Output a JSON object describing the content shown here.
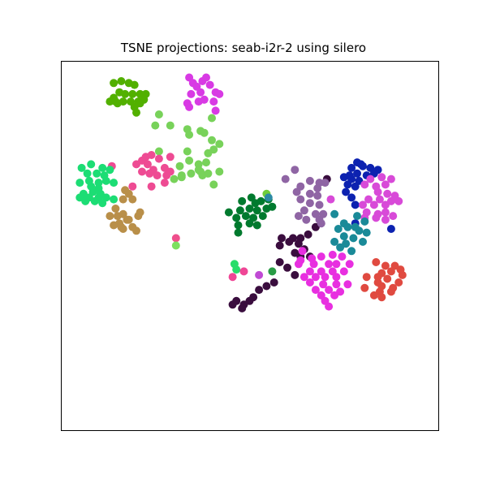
{
  "chart_data": {
    "type": "scatter",
    "title": "TSNE projections: seab-i2r-2 using silero",
    "xlabel": "",
    "ylabel": "",
    "axis_ticks": "none",
    "grid": false,
    "xlim": [
      0,
      100
    ],
    "ylim": [
      0,
      100
    ],
    "series": [
      {
        "color": "#52b000",
        "points": [
          [
            14,
            94
          ],
          [
            16,
            94.5
          ],
          [
            18,
            94
          ],
          [
            19.5,
            93.5
          ],
          [
            14,
            90
          ],
          [
            15.5,
            91.5
          ],
          [
            17,
            91
          ],
          [
            19,
            91
          ],
          [
            21,
            91
          ],
          [
            22.5,
            91
          ],
          [
            13,
            89
          ],
          [
            15,
            88.5
          ],
          [
            16.5,
            89
          ],
          [
            18.5,
            89
          ],
          [
            20.5,
            89
          ],
          [
            22,
            89.5
          ],
          [
            21,
            88.5
          ],
          [
            19.5,
            87.5
          ],
          [
            14.5,
            89
          ],
          [
            20,
            86
          ]
        ]
      },
      {
        "color": "#d83ae4",
        "points": [
          [
            34,
            95.5
          ],
          [
            38.5,
            95.5
          ],
          [
            35,
            94
          ],
          [
            37.5,
            94.5
          ],
          [
            39.5,
            93.5
          ],
          [
            36,
            93
          ],
          [
            41,
            91.5
          ],
          [
            42,
            91
          ],
          [
            34.5,
            91
          ],
          [
            37,
            91.5
          ],
          [
            38,
            89.5
          ],
          [
            40.5,
            89
          ],
          [
            33.5,
            88.5
          ],
          [
            36.5,
            89
          ],
          [
            34,
            87.5
          ],
          [
            41,
            86.5
          ]
        ]
      },
      {
        "color": "#78d25a",
        "points": [
          [
            26,
            85.5
          ],
          [
            25,
            82.5
          ],
          [
            29,
            82.5
          ],
          [
            33.5,
            81.5
          ],
          [
            37,
            81
          ],
          [
            34,
            80
          ],
          [
            40,
            84.5
          ],
          [
            38,
            80.5
          ],
          [
            40,
            78.5
          ],
          [
            42,
            77.5
          ],
          [
            33.5,
            75.5
          ],
          [
            40.5,
            76
          ],
          [
            26,
            75.5
          ],
          [
            39,
            75
          ],
          [
            34,
            73
          ],
          [
            36.5,
            72
          ],
          [
            38.5,
            72.5
          ],
          [
            31.5,
            71.5
          ],
          [
            32,
            69
          ],
          [
            34.5,
            69.5
          ],
          [
            37,
            70
          ],
          [
            42,
            70
          ],
          [
            39,
            69.5
          ],
          [
            30,
            68
          ],
          [
            37.5,
            69
          ],
          [
            40.5,
            66.5
          ],
          [
            32,
            68.5
          ],
          [
            36.5,
            70.5
          ]
        ]
      },
      {
        "color": "#ee4b93",
        "points": [
          [
            22.5,
            74
          ],
          [
            24,
            74.5
          ],
          [
            21.5,
            73
          ],
          [
            26,
            73.5
          ],
          [
            29,
            74
          ],
          [
            20,
            72
          ],
          [
            23,
            72
          ],
          [
            24.5,
            70.5
          ],
          [
            27.5,
            71
          ],
          [
            29,
            70
          ],
          [
            21.5,
            70
          ],
          [
            23.5,
            69.5
          ],
          [
            25.5,
            69
          ],
          [
            28,
            69
          ],
          [
            19,
            66
          ],
          [
            24,
            66
          ],
          [
            27.5,
            67
          ],
          [
            13.5,
            71.5
          ]
        ]
      },
      {
        "color": "#1cdd74",
        "points": [
          [
            5.5,
            71
          ],
          [
            8,
            72
          ],
          [
            11,
            71
          ],
          [
            13,
            70.5
          ],
          [
            7,
            69.5
          ],
          [
            9.5,
            69.5
          ],
          [
            11.5,
            69
          ],
          [
            5,
            67
          ],
          [
            7.5,
            67.5
          ],
          [
            10,
            67
          ],
          [
            12,
            67.5
          ],
          [
            14,
            67
          ],
          [
            8,
            66
          ],
          [
            10,
            65.5
          ],
          [
            6,
            64
          ],
          [
            8.5,
            64.5
          ],
          [
            10.5,
            64
          ],
          [
            5,
            63
          ],
          [
            7.5,
            63
          ],
          [
            10,
            63
          ],
          [
            12,
            63
          ],
          [
            14,
            62.5
          ],
          [
            6.5,
            62
          ],
          [
            9,
            62
          ],
          [
            11,
            61.5
          ]
        ]
      },
      {
        "color": "#b98f49",
        "points": [
          [
            17,
            65
          ],
          [
            18,
            64
          ],
          [
            16.5,
            62.5
          ],
          [
            19,
            62.5
          ],
          [
            14.5,
            60
          ],
          [
            15,
            58
          ],
          [
            16.5,
            58.5
          ],
          [
            15.5,
            56
          ],
          [
            18,
            57
          ],
          [
            20.5,
            58
          ],
          [
            21,
            59
          ],
          [
            17.5,
            57
          ],
          [
            13,
            58
          ],
          [
            14,
            55.5
          ],
          [
            16.5,
            54.5
          ],
          [
            20,
            54
          ],
          [
            19,
            55
          ],
          [
            16,
            55
          ]
        ]
      },
      {
        "color": "#007a2e",
        "points": [
          [
            48,
            62
          ],
          [
            50.5,
            63
          ],
          [
            51.5,
            61.5
          ],
          [
            53,
            62
          ],
          [
            55,
            62.5
          ],
          [
            47.5,
            59.5
          ],
          [
            50,
            60
          ],
          [
            52,
            59.5
          ],
          [
            54.5,
            60
          ],
          [
            56,
            60.5
          ],
          [
            44.5,
            59
          ],
          [
            46.5,
            57.5
          ],
          [
            49,
            58
          ],
          [
            51,
            57.5
          ],
          [
            53.5,
            58
          ],
          [
            47,
            55.5
          ],
          [
            50,
            56
          ],
          [
            52,
            55.5
          ],
          [
            47,
            53.5
          ]
        ]
      },
      {
        "color": "#3a0d3e",
        "points": [
          [
            70.5,
            68
          ],
          [
            58.5,
            52
          ],
          [
            61.5,
            52
          ],
          [
            63.5,
            52
          ],
          [
            65.5,
            53
          ],
          [
            58,
            50
          ],
          [
            60.5,
            51
          ],
          [
            63,
            50.5
          ],
          [
            64.5,
            49
          ],
          [
            67.5,
            55
          ],
          [
            62,
            48
          ],
          [
            63.5,
            47
          ],
          [
            66,
            47
          ],
          [
            58,
            45.5
          ],
          [
            60,
            44
          ],
          [
            62,
            42
          ],
          [
            56.5,
            40
          ],
          [
            54.5,
            39
          ],
          [
            52.5,
            38
          ],
          [
            51,
            36
          ],
          [
            50,
            35
          ],
          [
            48.5,
            34
          ],
          [
            46.5,
            35
          ],
          [
            45.5,
            34
          ],
          [
            48,
            33
          ]
        ]
      },
      {
        "color": "#8f65a4",
        "points": [
          [
            62,
            70.5
          ],
          [
            59.5,
            68
          ],
          [
            66,
            67.5
          ],
          [
            68.5,
            67
          ],
          [
            70,
            67
          ],
          [
            63.5,
            66
          ],
          [
            68,
            65.5
          ],
          [
            62.5,
            64.5
          ],
          [
            66,
            64
          ],
          [
            68,
            63.5
          ],
          [
            63.5,
            62.5
          ],
          [
            68.5,
            61
          ],
          [
            66,
            61.5
          ],
          [
            64.5,
            59.5
          ],
          [
            67.5,
            58.5
          ],
          [
            65,
            57
          ],
          [
            68.5,
            57
          ],
          [
            69.5,
            58.5
          ],
          [
            63,
            58
          ],
          [
            69,
            56
          ]
        ]
      },
      {
        "color": "#0c22b0",
        "points": [
          [
            78.5,
            72.5
          ],
          [
            79.5,
            72
          ],
          [
            77,
            71
          ],
          [
            80,
            71.5
          ],
          [
            82,
            71
          ],
          [
            84,
            70.5
          ],
          [
            76.5,
            69
          ],
          [
            78.5,
            69.5
          ],
          [
            81,
            69
          ],
          [
            83,
            69.5
          ],
          [
            75,
            68.5
          ],
          [
            77,
            68
          ],
          [
            79,
            67.5
          ],
          [
            76,
            66.5
          ],
          [
            78,
            66
          ],
          [
            75.5,
            64.5
          ],
          [
            77,
            63
          ],
          [
            78,
            61
          ],
          [
            78,
            56
          ],
          [
            87.5,
            54.5
          ]
        ]
      },
      {
        "color": "#d84ad8",
        "points": [
          [
            82,
            68
          ],
          [
            85,
            68.5
          ],
          [
            87.5,
            68
          ],
          [
            80.5,
            66.5
          ],
          [
            83.5,
            66
          ],
          [
            86,
            66.5
          ],
          [
            84,
            64.5
          ],
          [
            86.5,
            64
          ],
          [
            88.5,
            63.5
          ],
          [
            81.5,
            62.5
          ],
          [
            84.5,
            62.5
          ],
          [
            87.5,
            62
          ],
          [
            89.5,
            62
          ],
          [
            80,
            61
          ],
          [
            83,
            61
          ],
          [
            86,
            61
          ],
          [
            71.5,
            62.5
          ],
          [
            81,
            59
          ],
          [
            84,
            58.5
          ],
          [
            86,
            59
          ],
          [
            88,
            58
          ],
          [
            80.5,
            57.5
          ],
          [
            83.5,
            57.5
          ],
          [
            86,
            57
          ]
        ]
      },
      {
        "color": "#1a8a98",
        "points": [
          [
            72.5,
            58.5
          ],
          [
            78.5,
            58
          ],
          [
            75,
            56
          ],
          [
            80.5,
            56.5
          ],
          [
            78,
            55
          ],
          [
            73.5,
            54.5
          ],
          [
            76,
            55
          ],
          [
            79,
            54
          ],
          [
            81,
            53.5
          ],
          [
            75,
            52.5
          ],
          [
            77.5,
            52
          ],
          [
            80,
            51
          ],
          [
            75.5,
            50.5
          ],
          [
            77,
            48.5
          ],
          [
            72.5,
            51
          ],
          [
            74,
            49.5
          ]
        ]
      },
      {
        "color": "#e82fe0",
        "points": [
          [
            64,
            48.5
          ],
          [
            63.5,
            46
          ],
          [
            66.5,
            46.5
          ],
          [
            69,
            47
          ],
          [
            72,
            47.5
          ],
          [
            74.5,
            47
          ],
          [
            67,
            45
          ],
          [
            71,
            45
          ],
          [
            73,
            45
          ],
          [
            76.5,
            45
          ],
          [
            63,
            45
          ],
          [
            66,
            43
          ],
          [
            69,
            43
          ],
          [
            72,
            43
          ],
          [
            75,
            43
          ],
          [
            64.5,
            41.5
          ],
          [
            67.5,
            41.5
          ],
          [
            70,
            41.5
          ],
          [
            73,
            41.5
          ],
          [
            66,
            40
          ],
          [
            69.5,
            39.5
          ],
          [
            73,
            39.5
          ],
          [
            76,
            39.5
          ],
          [
            67.5,
            38
          ],
          [
            71,
            38
          ],
          [
            74,
            37.5
          ],
          [
            69,
            36.5
          ],
          [
            72.5,
            36.5
          ],
          [
            70,
            35
          ],
          [
            71,
            33.5
          ]
        ]
      },
      {
        "color": "#e04a40",
        "points": [
          [
            83.5,
            45.5
          ],
          [
            86,
            44.5
          ],
          [
            88.5,
            44.5
          ],
          [
            90,
            43.5
          ],
          [
            85,
            42.5
          ],
          [
            87.5,
            43
          ],
          [
            81,
            41.5
          ],
          [
            84,
            41.5
          ],
          [
            90.5,
            42
          ],
          [
            86.5,
            41
          ],
          [
            84,
            40
          ],
          [
            89.5,
            40
          ],
          [
            85,
            39
          ],
          [
            88,
            38.5
          ],
          [
            80.5,
            38.5
          ],
          [
            84.5,
            37.5
          ],
          [
            87.5,
            37.5
          ],
          [
            83,
            36.5
          ],
          [
            85,
            36
          ]
        ]
      },
      {
        "color": "#26dd6a",
        "points": [
          [
            46,
            45
          ],
          [
            46.5,
            43.5
          ]
        ]
      },
      {
        "color": "#ef4696",
        "points": [
          [
            45.5,
            41.5
          ],
          [
            48.5,
            43
          ]
        ]
      },
      {
        "color": "#2a9c46",
        "points": [
          [
            56,
            43
          ]
        ]
      },
      {
        "color": "#6fcc3a",
        "points": [
          [
            54.5,
            64
          ]
        ]
      },
      {
        "color": "#2c8aa4",
        "points": [
          [
            55,
            63
          ]
        ]
      },
      {
        "color": "#ef4f8c",
        "points": [
          [
            30.5,
            52
          ]
        ]
      },
      {
        "color": "#7de060",
        "points": [
          [
            30.5,
            50
          ]
        ]
      },
      {
        "color": "#c04ad4",
        "points": [
          [
            52.5,
            42
          ]
        ]
      }
    ]
  }
}
